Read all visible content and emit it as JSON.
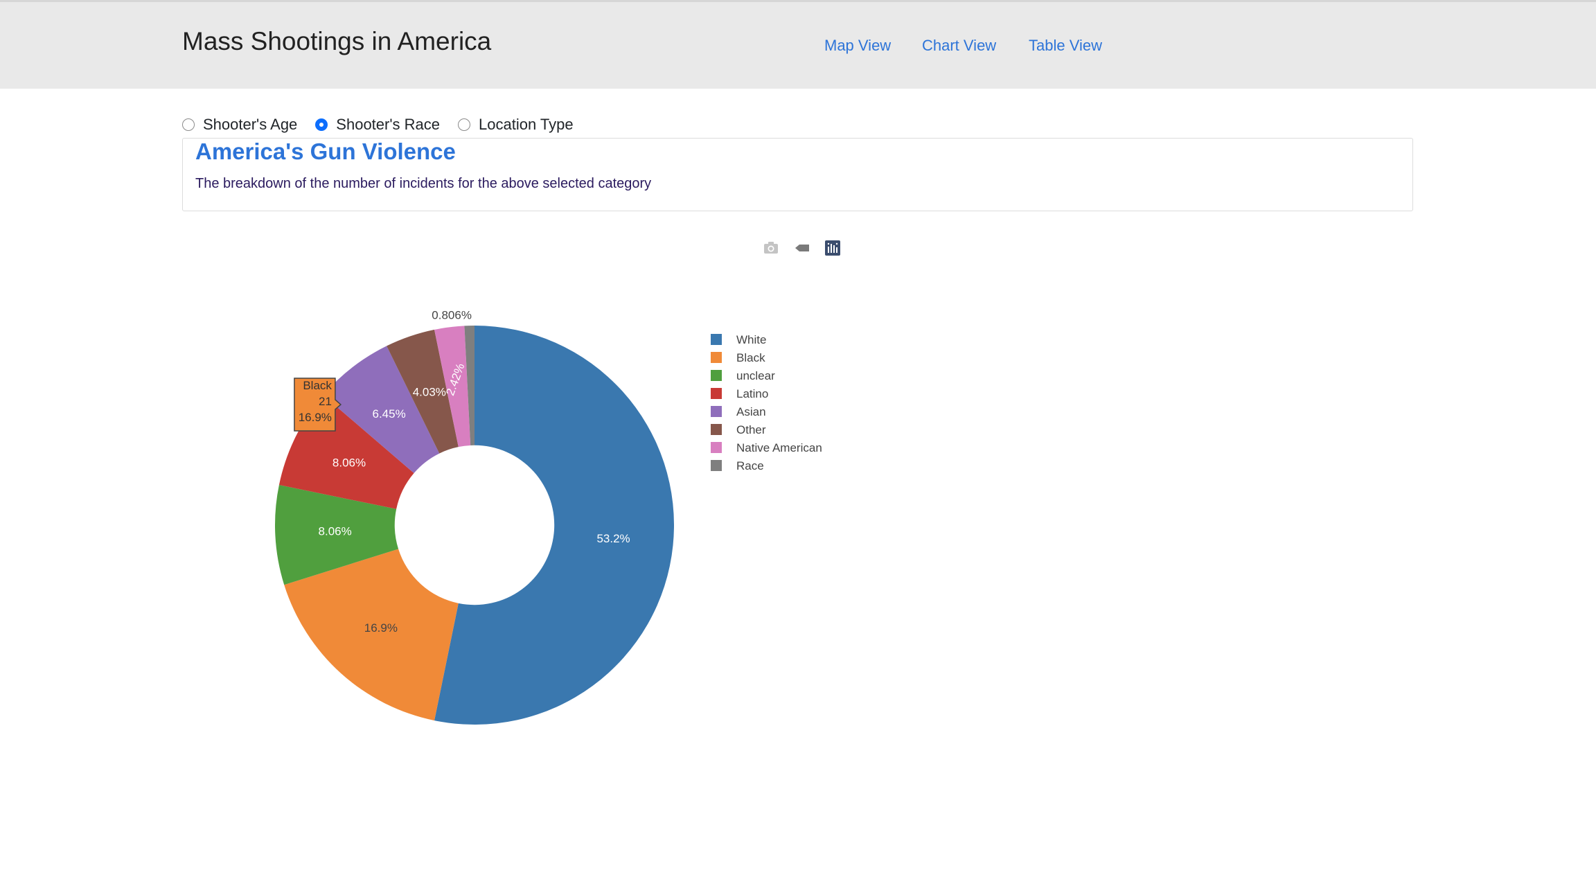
{
  "navbar": {
    "brand": "Mass Shootings in America",
    "links": [
      "Map View",
      "Chart View",
      "Table View"
    ]
  },
  "radios": {
    "options": [
      "Shooter's Age",
      "Shooter's Race",
      "Location Type"
    ],
    "selected": "Shooter's Race"
  },
  "card": {
    "title": "America's Gun Violence",
    "text": "The breakdown of the number of incidents for the above selected category"
  },
  "modebar": {
    "icons": [
      "camera-icon",
      "tag-icon",
      "plotly-logo-icon"
    ]
  },
  "chart_data": {
    "type": "pie",
    "hole": 0.4,
    "labels": [
      "White",
      "Black",
      "unclear",
      "Latino",
      "Asian",
      "Other",
      "Native American",
      "Race"
    ],
    "values": [
      66,
      21,
      10,
      10,
      8,
      5,
      3,
      1
    ],
    "percent_labels": [
      "53.2%",
      "16.9%",
      "8.06%",
      "8.06%",
      "6.45%",
      "4.03%",
      "2.42%",
      "0.806%"
    ],
    "colors": [
      "#3a78af",
      "#f08a38",
      "#509f3e",
      "#c83a35",
      "#8f6ebb",
      "#86574b",
      "#d87fc0",
      "#7f7f7f"
    ],
    "legend_position": "right",
    "hover": {
      "label": "Black",
      "value": "21",
      "percent": "16.9%"
    }
  }
}
